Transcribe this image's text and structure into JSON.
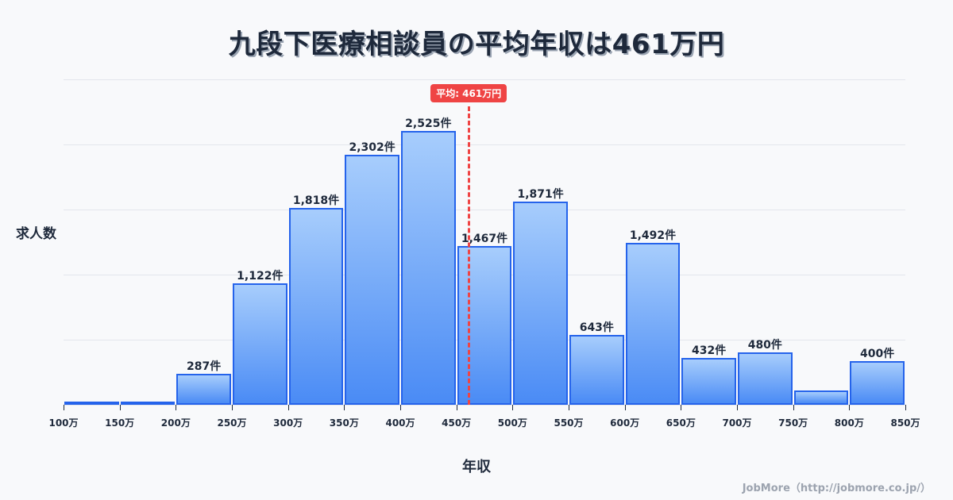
{
  "title": "九段下医療相談員の平均年収は461万円",
  "footer": "JobMore（http://jobmore.co.jp/）",
  "colors": {
    "bar_border": "#2563eb",
    "bar_top": "#a7cdfc",
    "bar_bottom": "#4a8bf5",
    "mean_line": "#ef4444",
    "text": "#1e293b",
    "background": "#f8f9fb"
  },
  "chart_data": {
    "type": "bar",
    "title": "九段下医療相談員の平均年収は461万円",
    "xlabel": "年収",
    "ylabel": "求人数",
    "bin_edges": [
      100,
      150,
      200,
      250,
      300,
      350,
      400,
      450,
      500,
      550,
      600,
      650,
      700,
      750,
      800,
      850
    ],
    "tick_labels": [
      "100万",
      "150万",
      "200万",
      "250万",
      "300万",
      "350万",
      "400万",
      "450万",
      "500万",
      "550万",
      "600万",
      "650万",
      "700万",
      "750万",
      "800万",
      "850万"
    ],
    "categories": [
      "100-150万",
      "150-200万",
      "200-250万",
      "250-300万",
      "300-350万",
      "350-400万",
      "400-450万",
      "450-500万",
      "500-550万",
      "550-600万",
      "600-650万",
      "650-700万",
      "700-750万",
      "750-800万",
      "800-850万"
    ],
    "values": [
      10,
      10,
      287,
      1122,
      1818,
      2302,
      2525,
      1467,
      1871,
      643,
      1492,
      432,
      480,
      130,
      400
    ],
    "value_labels": [
      "",
      "",
      "287件",
      "1,122件",
      "1,818件",
      "2,302件",
      "2,525件",
      "1,467件",
      "1,871件",
      "643件",
      "1,492件",
      "432件",
      "480件",
      "",
      "400件"
    ],
    "ylim": [
      0,
      3000
    ],
    "grid": true,
    "gridlines": [
      0,
      600,
      1200,
      1800,
      2400,
      3000
    ],
    "mean": {
      "value": 461,
      "label": "平均: 461万円"
    }
  }
}
